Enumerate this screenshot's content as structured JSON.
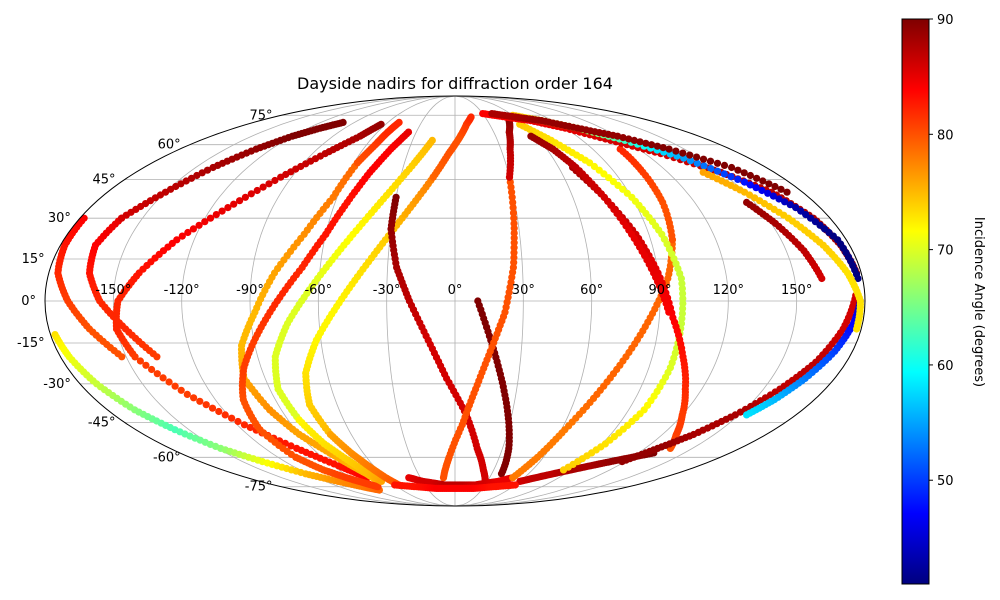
{
  "chart_data": {
    "type": "scatter",
    "projection": "mollweide",
    "title": "Dayside nadirs for diffraction order 164",
    "xlabel": "",
    "ylabel": "",
    "grid": true,
    "lon_ticks": [
      "-150°",
      "-120°",
      "-90°",
      "-60°",
      "-30°",
      "0°",
      "30°",
      "60°",
      "90°",
      "120°",
      "150°"
    ],
    "lon_tick_values": [
      -150,
      -120,
      -90,
      -60,
      -30,
      0,
      30,
      60,
      90,
      120,
      150
    ],
    "lat_ticks": [
      "75°",
      "60°",
      "45°",
      "30°",
      "15°",
      "0°",
      "-15°",
      "-30°",
      "-45°",
      "-60°",
      "-75°"
    ],
    "lat_tick_values": [
      75,
      60,
      45,
      30,
      15,
      0,
      -15,
      -30,
      -45,
      -60,
      -75
    ],
    "colorbar": {
      "label": "Incidence Angle (degrees)",
      "colormap": "jet",
      "range": [
        41,
        90
      ],
      "ticks": [
        50,
        60,
        70,
        80,
        90
      ],
      "placement": "right"
    },
    "series": [
      {
        "lon": [
          -178,
          -176,
          -172,
          -166,
          -158,
          -148,
          -136,
          -122,
          -108,
          -96,
          -86
        ],
        "lat": [
          -12,
          -20,
          -30,
          -40,
          -48,
          -56,
          -62,
          -68,
          -72,
          -75,
          -77
        ],
        "incidence": [
          73,
          71,
          69,
          66,
          63,
          66,
          71,
          75,
          77,
          78,
          79
        ]
      },
      {
        "lon": [
          -178,
          -178,
          -176,
          -170,
          -162,
          -152
        ],
        "lat": [
          30,
          20,
          10,
          0,
          -10,
          -20
        ],
        "incidence": [
          84,
          83,
          82,
          81,
          80,
          80
        ]
      },
      {
        "lon": [
          -146,
          -150,
          -148,
          -140,
          -128,
          -112,
          -96,
          -82,
          -70,
          -64
        ],
        "lat": [
          -20,
          -10,
          0,
          10,
          22,
          34,
          46,
          56,
          64,
          70
        ],
        "incidence": [
          81,
          82,
          82,
          83,
          84,
          85,
          86,
          87,
          88,
          89
        ]
      },
      {
        "lon": [
          -146,
          -132,
          -116,
          -100,
          -86,
          -76
        ],
        "lat": [
          -20,
          -34,
          -46,
          -56,
          -64,
          -70
        ],
        "incidence": [
          81,
          81,
          82,
          83,
          83,
          84
        ]
      },
      {
        "lon": [
          -160,
          -164,
          -162,
          -156,
          -146,
          -136
        ],
        "lat": [
          30,
          20,
          10,
          0,
          -10,
          -20
        ],
        "incidence": [
          85,
          84,
          83,
          82,
          82,
          81
        ]
      },
      {
        "lon": [
          -160,
          -150,
          -140,
          -130,
          -120,
          -110,
          -100
        ],
        "lat": [
          30,
          40,
          50,
          58,
          64,
          68,
          71
        ],
        "incidence": [
          86,
          87,
          88,
          89,
          90,
          90,
          90
        ]
      },
      {
        "lon": [
          -96,
          -100,
          -96,
          -88,
          -80,
          -70,
          -62,
          -58
        ],
        "lat": [
          -40,
          -28,
          -16,
          -4,
          10,
          24,
          38,
          52
        ],
        "incidence": [
          77,
          76,
          75,
          75,
          76,
          77,
          78,
          79
        ]
      },
      {
        "lon": [
          -58,
          -54,
          -52,
          -50
        ],
        "lat": [
          52,
          60,
          66,
          71
        ],
        "incidence": [
          80,
          81,
          82,
          82
        ]
      },
      {
        "lon": [
          -96,
          -90,
          -82,
          -76,
          -72,
          -70
        ],
        "lat": [
          -40,
          -50,
          -58,
          -64,
          -68,
          -72
        ],
        "incidence": [
          77,
          76,
          76,
          75,
          75,
          75
        ]
      },
      {
        "lon": [
          -108,
          -110,
          -106,
          -98,
          -88,
          -78,
          -68,
          -60
        ],
        "lat": [
          -60,
          -48,
          -36,
          -24,
          -12,
          0,
          12,
          24
        ],
        "incidence": [
          80,
          80,
          80,
          81,
          81,
          82,
          82,
          83
        ]
      },
      {
        "lon": [
          -60,
          -54,
          -48,
          -42,
          -36
        ],
        "lat": [
          24,
          36,
          48,
          58,
          66
        ],
        "incidence": [
          83,
          83,
          84,
          84,
          85
        ]
      },
      {
        "lon": [
          -108,
          -102,
          -94,
          -86,
          -80
        ],
        "lat": [
          -60,
          -66,
          -70,
          -73,
          -75
        ],
        "incidence": [
          80,
          80,
          81,
          81,
          81
        ]
      },
      {
        "lon": [
          -84,
          -86,
          -82,
          -74,
          -64,
          -54,
          -44,
          -34,
          -24,
          -16
        ],
        "lat": [
          -44,
          -32,
          -20,
          -8,
          4,
          16,
          28,
          40,
          52,
          62
        ],
        "incidence": [
          70,
          70,
          70,
          70,
          70,
          71,
          72,
          73,
          74,
          75
        ]
      },
      {
        "lon": [
          -84,
          -80,
          -74,
          -70,
          -68
        ],
        "lat": [
          -44,
          -54,
          -62,
          -68,
          -72
        ],
        "incidence": [
          72,
          73,
          74,
          75,
          76
        ]
      },
      {
        "lon": [
          -72,
          -74,
          -70,
          -62,
          -52,
          -42,
          -32,
          -22,
          -12
        ],
        "lat": [
          -50,
          -38,
          -26,
          -14,
          -2,
          10,
          22,
          34,
          46
        ],
        "incidence": [
          75,
          74,
          73,
          72,
          72,
          73,
          74,
          76,
          78
        ]
      },
      {
        "lon": [
          -12,
          -4,
          4,
          10,
          16
        ],
        "lat": [
          46,
          56,
          64,
          70,
          74
        ],
        "incidence": [
          79,
          80,
          80,
          81,
          82
        ]
      },
      {
        "lon": [
          -72,
          -68,
          -64,
          -60,
          -56
        ],
        "lat": [
          -50,
          -58,
          -64,
          -70,
          -74
        ],
        "incidence": [
          76,
          77,
          78,
          79,
          80
        ]
      },
      {
        "lon": [
          -30,
          -30,
          -26,
          -20,
          -12,
          -4,
          6
        ],
        "lat": [
          38,
          26,
          12,
          0,
          -14,
          -28,
          -42
        ],
        "incidence": [
          90,
          89,
          88,
          87,
          86,
          86,
          86
        ]
      },
      {
        "lon": [
          6,
          14,
          22,
          30
        ],
        "lat": [
          -42,
          -56,
          -66,
          -74
        ],
        "incidence": [
          86,
          86,
          86,
          86
        ]
      },
      {
        "lon": [
          10,
          16,
          22,
          28,
          34,
          38
        ],
        "lat": [
          0,
          -14,
          -28,
          -42,
          -56,
          -68
        ],
        "incidence": [
          90,
          90,
          90,
          90,
          90,
          90
        ]
      },
      {
        "lon": [
          -10,
          -4,
          4,
          10,
          16,
          22,
          26,
          28,
          30
        ],
        "lat": [
          -70,
          -60,
          -46,
          -32,
          -18,
          -4,
          12,
          28,
          46
        ],
        "incidence": [
          80,
          80,
          80,
          80,
          80,
          80,
          80,
          80,
          80
        ]
      },
      {
        "lon": [
          30,
          36,
          42,
          50
        ],
        "lat": [
          46,
          58,
          66,
          72
        ],
        "incidence": [
          86,
          87,
          88,
          89
        ]
      },
      {
        "lon": [
          -40,
          -30,
          -20,
          -10,
          0,
          10,
          20,
          30,
          40,
          50
        ],
        "lat": [
          -70,
          -72,
          -73,
          -74,
          -74,
          -74,
          -74,
          -73,
          -72,
          -70
        ],
        "incidence": [
          85,
          86,
          86,
          87,
          87,
          87,
          86,
          86,
          85,
          85
        ]
      },
      {
        "lon": [
          60,
          70,
          80,
          90,
          100,
          110,
          120,
          130
        ],
        "lat": [
          -72,
          -70,
          -68,
          -66,
          -64,
          -62,
          -60,
          -58
        ],
        "incidence": [
          86,
          87,
          87,
          88,
          88,
          89,
          89,
          90
        ]
      },
      {
        "lon": [
          -60,
          -40,
          -20,
          0,
          20,
          40,
          60
        ],
        "lat": [
          -74,
          -75,
          -76,
          -76,
          -76,
          -75,
          -74
        ],
        "incidence": [
          83,
          83,
          84,
          84,
          84,
          83,
          83
        ]
      },
      {
        "lon": [
          50,
          56,
          62,
          70,
          78,
          86,
          94,
          100
        ],
        "lat": [
          -70,
          -60,
          -48,
          -34,
          -20,
          -6,
          8,
          22
        ],
        "incidence": [
          78,
          78,
          78,
          79,
          79,
          79,
          79,
          79
        ]
      },
      {
        "lon": [
          100,
          104,
          106,
          108
        ],
        "lat": [
          22,
          36,
          48,
          58
        ],
        "incidence": [
          80,
          80,
          81,
          82
        ]
      },
      {
        "lon": [
          84,
          92,
          98,
          100,
          100
        ],
        "lat": [
          -66,
          -54,
          -40,
          -24,
          -8
        ],
        "incidence": [
          74,
          73,
          72,
          70,
          69
        ]
      },
      {
        "lon": [
          100,
          100,
          96,
          90,
          80,
          68,
          56
        ],
        "lat": [
          -8,
          8,
          24,
          38,
          52,
          62,
          70
        ],
        "incidence": [
          69,
          69,
          70,
          71,
          72,
          73,
          74
        ]
      },
      {
        "lon": [
          68,
          76,
          84,
          90,
          96,
          104,
          112,
          120,
          128,
          136
        ],
        "lat": [
          50,
          38,
          24,
          10,
          -6,
          -20,
          -32,
          -42,
          -50,
          -56
        ],
        "incidence": [
          88,
          87,
          86,
          85,
          84,
          83,
          82,
          81,
          81,
          80
        ]
      },
      {
        "lon": [
          56,
          64,
          70,
          76,
          82,
          88,
          94
        ],
        "lat": [
          64,
          58,
          50,
          38,
          24,
          10,
          -4
        ],
        "incidence": [
          89,
          88,
          87,
          86,
          85,
          85,
          84
        ]
      },
      {
        "lon": [
          30,
          50,
          70,
          90,
          110,
          130,
          150,
          164,
          172,
          176,
          178
        ],
        "lat": [
          76,
          74,
          72,
          68,
          62,
          56,
          48,
          40,
          30,
          20,
          10
        ],
        "incidence": [
          84,
          84,
          85,
          85,
          86,
          86,
          87,
          87,
          88,
          88,
          88
        ]
      },
      {
        "lon": [
          60,
          80,
          100,
          120,
          140,
          156,
          168,
          176,
          178
        ],
        "lat": [
          75,
          72,
          68,
          62,
          54,
          44,
          34,
          22,
          8
        ],
        "incidence": [
          75,
          72,
          68,
          62,
          55,
          48,
          43,
          41,
          41
        ]
      },
      {
        "lon": [
          40,
          60,
          80,
          100,
          120,
          140,
          160,
          172
        ],
        "lat": [
          76,
          74,
          72,
          68,
          64,
          58,
          50,
          40
        ],
        "incidence": [
          88,
          88,
          89,
          89,
          89,
          90,
          90,
          90
        ]
      },
      {
        "lon": [
          176,
          172,
          166,
          158,
          148,
          138,
          128,
          118
        ],
        "lat": [
          2,
          -10,
          -22,
          -32,
          -42,
          -50,
          -56,
          -62
        ],
        "incidence": [
          86,
          86,
          87,
          87,
          88,
          88,
          89,
          89
        ]
      },
      {
        "lon": [
          178,
          176,
          172,
          166,
          160,
          154
        ],
        "lat": [
          0,
          -8,
          -18,
          -28,
          -36,
          -42
        ],
        "incidence": [
          44,
          47,
          50,
          53,
          56,
          58
        ]
      },
      {
        "lon": [
          140,
          150,
          160,
          168,
          174,
          178,
          178
        ],
        "lat": [
          48,
          40,
          30,
          20,
          10,
          0,
          -10
        ],
        "incidence": [
          76,
          75,
          74,
          74,
          73,
          73,
          73
        ]
      },
      {
        "lon": [
          146,
          152,
          158,
          162
        ],
        "lat": [
          36,
          28,
          18,
          8
        ],
        "incidence": [
          89,
          88,
          87,
          86
        ]
      }
    ]
  }
}
